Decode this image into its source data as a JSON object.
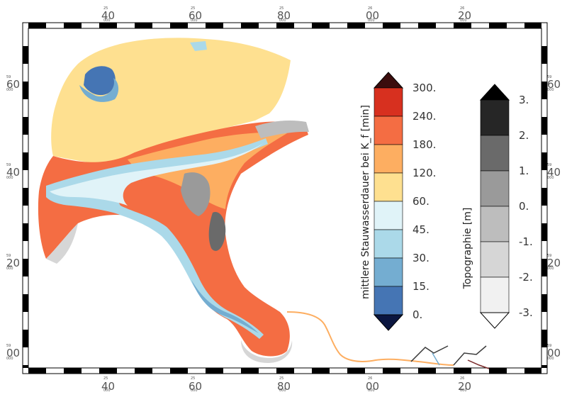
{
  "map": {
    "x_ticks": [
      {
        "value": "40",
        "small": "25"
      },
      {
        "value": "60",
        "small": "25"
      },
      {
        "value": "80",
        "small": "25"
      },
      {
        "value": "00",
        "small": "26"
      },
      {
        "value": "20",
        "small": "26"
      }
    ],
    "y_ticks": [
      {
        "value": "60",
        "small": "59"
      },
      {
        "value": "40",
        "small": "59"
      },
      {
        "value": "20",
        "small": "59"
      },
      {
        "value": "00",
        "small": "59"
      }
    ],
    "small_suffix": "000"
  },
  "colorbar_duration": {
    "title": "mittlere Stauwasserdauer bei K_f [min]",
    "labels": [
      "300.",
      "240.",
      "180.",
      "120.",
      "60.",
      "45.",
      "30.",
      "15.",
      "0."
    ],
    "colors": [
      "#d7301f",
      "#f46d43",
      "#fdae61",
      "#fee090",
      "#e0f3f8",
      "#abd9e9",
      "#74add1",
      "#4575b4"
    ],
    "over_color": "#3b0d0d",
    "under_color": "#0b1640"
  },
  "colorbar_topo": {
    "title": "Topographie [m]",
    "labels": [
      "3.",
      "2.",
      "1.",
      "0.",
      "-1.",
      "-2.",
      "-3."
    ],
    "colors": [
      "#262626",
      "#6a6a6a",
      "#9a9a9a",
      "#bdbdbd",
      "#d6d6d6",
      "#f1f1f1"
    ],
    "over_color": "#000000",
    "under_color": "#ffffff"
  }
}
